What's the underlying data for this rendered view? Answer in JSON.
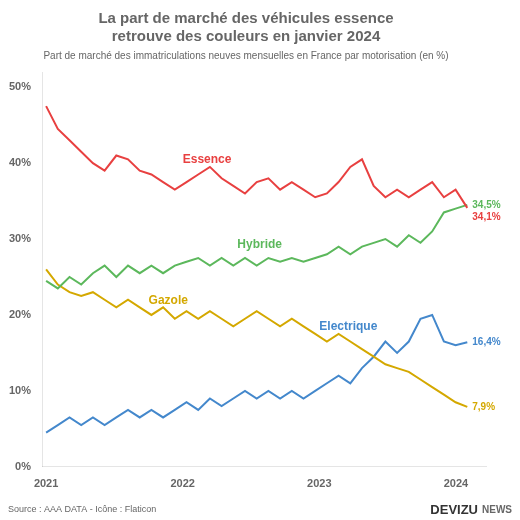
{
  "chart_data": {
    "type": "line",
    "title": [
      "La part de marché des véhicules essence",
      "retrouve des couleurs en janvier 2024"
    ],
    "subtitle": "Part de marché des immatriculations neuves mensuelles en France par motorisation (en %)",
    "source": "Source : AAA DATA - Icône : Flaticon",
    "brand": "DEVIZU",
    "brand_suffix": "NEWS",
    "x": [
      2021.0,
      2021.085639,
      2021.171278,
      2021.256917,
      2021.342556,
      2021.428194,
      2021.513833,
      2021.599472,
      2021.685111,
      2021.77075,
      2021.856389,
      2021.942028,
      2022.027667,
      2022.113306,
      2022.198944,
      2022.284583,
      2022.370222,
      2022.455861,
      2022.5415,
      2022.627139,
      2022.712778,
      2022.798417,
      2022.884056,
      2022.969694,
      2023.055333,
      2023.140972,
      2023.226611,
      2023.31225,
      2023.397889,
      2023.483528,
      2023.569167,
      2023.654806,
      2023.740444,
      2023.826083,
      2023.911722,
      2023.997361,
      2024.083
    ],
    "series": [
      {
        "name": "Essence",
        "color": "#e84040",
        "values": [
          47.5,
          44.5,
          43.0,
          41.5,
          40.0,
          39.0,
          41.0,
          40.5,
          39.0,
          38.5,
          37.5,
          36.5,
          37.5,
          38.5,
          39.5,
          38.0,
          37.0,
          36.0,
          37.5,
          38.0,
          36.5,
          37.5,
          36.5,
          35.5,
          36.0,
          37.5,
          39.5,
          40.5,
          37.0,
          35.5,
          36.5,
          35.5,
          36.5,
          37.5,
          35.5,
          36.5,
          34.1
        ],
        "value_labels": [
          null,
          null,
          null,
          null,
          null,
          null,
          null,
          null,
          null,
          null,
          null,
          null,
          null,
          null,
          null,
          null,
          null,
          null,
          null,
          null,
          null,
          null,
          null,
          null,
          null,
          null,
          null,
          null,
          null,
          null,
          null,
          null,
          null,
          null,
          null,
          null,
          "34,1%"
        ]
      },
      {
        "name": "Hybride",
        "color": "#5cb85c",
        "values": [
          24.5,
          23.5,
          25.0,
          24.0,
          25.5,
          26.5,
          25.0,
          26.5,
          25.5,
          26.5,
          25.5,
          26.5,
          27.0,
          27.5,
          26.5,
          27.5,
          26.5,
          27.5,
          26.5,
          27.5,
          27.0,
          27.5,
          27.0,
          27.5,
          28.0,
          29.0,
          28.0,
          29.0,
          29.5,
          30.0,
          29.0,
          30.5,
          29.5,
          31.0,
          33.5,
          34.0,
          34.5
        ],
        "value_labels": [
          null,
          null,
          null,
          null,
          null,
          null,
          null,
          null,
          null,
          null,
          null,
          null,
          null,
          null,
          null,
          null,
          null,
          null,
          null,
          null,
          null,
          null,
          null,
          null,
          null,
          null,
          null,
          null,
          null,
          null,
          null,
          null,
          null,
          null,
          null,
          null,
          "34,5%"
        ]
      },
      {
        "name": "Gazole",
        "color": "#d4a800",
        "values": [
          26.0,
          24.0,
          23.0,
          22.5,
          23.0,
          22.0,
          21.0,
          22.0,
          21.0,
          20.0,
          21.0,
          19.5,
          20.5,
          19.5,
          20.5,
          19.5,
          18.5,
          19.5,
          20.5,
          19.5,
          18.5,
          19.5,
          18.5,
          17.5,
          16.5,
          17.5,
          16.5,
          15.5,
          14.5,
          13.5,
          13.0,
          12.5,
          11.5,
          10.5,
          9.5,
          8.5,
          7.9
        ],
        "value_labels": [
          null,
          null,
          null,
          null,
          null,
          null,
          null,
          null,
          null,
          null,
          null,
          null,
          null,
          null,
          null,
          null,
          null,
          null,
          null,
          null,
          null,
          null,
          null,
          null,
          null,
          null,
          null,
          null,
          null,
          null,
          null,
          null,
          null,
          null,
          null,
          null,
          "7,9%"
        ]
      },
      {
        "name": "Electrique",
        "color": "#4488cc",
        "values": [
          4.5,
          5.5,
          6.5,
          5.5,
          6.5,
          5.5,
          6.5,
          7.5,
          6.5,
          7.5,
          6.5,
          7.5,
          8.5,
          7.5,
          9.0,
          8.0,
          9.0,
          10.0,
          9.0,
          10.0,
          9.0,
          10.0,
          9.0,
          10.0,
          11.0,
          12.0,
          11.0,
          13.0,
          14.5,
          16.5,
          15.0,
          16.5,
          19.5,
          20.0,
          16.5,
          16.0,
          16.4
        ],
        "value_labels": [
          null,
          null,
          null,
          null,
          null,
          null,
          null,
          null,
          null,
          null,
          null,
          null,
          null,
          null,
          null,
          null,
          null,
          null,
          null,
          null,
          null,
          null,
          null,
          null,
          null,
          null,
          null,
          null,
          null,
          null,
          null,
          null,
          null,
          null,
          null,
          null,
          "16,4%"
        ]
      }
    ],
    "xlim": [
      2020.97,
      2024.22
    ],
    "xticks": [
      2021,
      2022,
      2023,
      2024
    ],
    "ylim": [
      0,
      52
    ],
    "yticks": [
      {
        "value": 0,
        "label": "0%"
      },
      {
        "value": 10,
        "label": "10%"
      },
      {
        "value": 20,
        "label": "20%"
      },
      {
        "value": 30,
        "label": "30%"
      },
      {
        "value": 40,
        "label": "40%"
      },
      {
        "value": 50,
        "label": "50%"
      }
    ],
    "grid": false,
    "annotations": [
      {
        "text": "Essence",
        "x": 2022.0,
        "y": 40.0,
        "color": "#e84040"
      },
      {
        "text": "Hybride",
        "x": 2022.4,
        "y": 28.8,
        "color": "#5cb85c"
      },
      {
        "text": "Gazole",
        "x": 2021.75,
        "y": 21.5,
        "color": "#d4a800"
      },
      {
        "text": "Electrique",
        "x": 2023.0,
        "y": 18.0,
        "color": "#4488cc"
      }
    ]
  }
}
